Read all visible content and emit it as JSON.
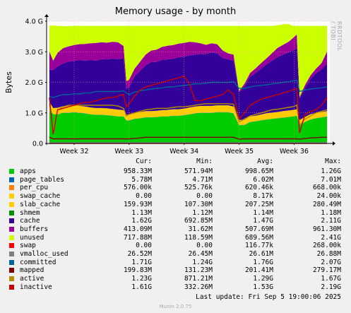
{
  "chart_data": {
    "type": "area",
    "title": "Memory usage - by month",
    "ylabel": "Bytes",
    "watermark": "RRDTOOL / TOBI OETIKER",
    "ylim": [
      0,
      4.0
    ],
    "yticks": [
      {
        "value": 0.0,
        "label": "0.0"
      },
      {
        "value": 1.0,
        "label": "1.0 G"
      },
      {
        "value": 2.0,
        "label": "2.0 G"
      },
      {
        "value": 3.0,
        "label": "3.0 G"
      },
      {
        "value": 4.0,
        "label": "4.0 G"
      }
    ],
    "xlim": [
      31.5,
      36.65
    ],
    "xticks": [
      {
        "value": 32,
        "label": "Week 32"
      },
      {
        "value": 33,
        "label": "Week 33"
      },
      {
        "value": 34,
        "label": "Week 34"
      },
      {
        "value": 35,
        "label": "Week 35"
      },
      {
        "value": 36,
        "label": "Week 36"
      }
    ],
    "x": [
      31.55,
      31.62,
      31.7,
      31.8,
      31.9,
      32.0,
      32.1,
      32.2,
      32.3,
      32.4,
      32.5,
      32.6,
      32.7,
      32.8,
      32.9,
      32.95,
      33.0,
      33.1,
      33.2,
      33.3,
      33.4,
      33.5,
      33.6,
      33.7,
      33.8,
      33.9,
      34.0,
      34.1,
      34.2,
      34.3,
      34.4,
      34.5,
      34.6,
      34.7,
      34.8,
      34.9,
      35.0,
      35.1,
      35.2,
      35.3,
      35.4,
      35.5,
      35.6,
      35.7,
      35.8,
      35.9,
      35.98,
      36.05,
      36.1,
      36.2,
      36.3,
      36.4,
      36.5,
      36.6
    ],
    "total_top": 3.85,
    "series": [
      {
        "name": "apps",
        "color": "#00cc00",
        "values": [
          1.15,
          0.95,
          0.95,
          1.0,
          1.0,
          1.02,
          1.0,
          0.98,
          0.95,
          0.93,
          0.93,
          0.92,
          0.9,
          0.88,
          0.88,
          0.75,
          0.75,
          0.8,
          0.82,
          0.85,
          0.85,
          0.86,
          0.88,
          0.88,
          0.9,
          0.9,
          0.92,
          0.95,
          0.98,
          1.0,
          1.0,
          1.0,
          1.02,
          1.02,
          1.02,
          0.98,
          0.6,
          0.6,
          0.7,
          0.72,
          0.75,
          0.78,
          0.8,
          0.82,
          0.84,
          0.86,
          0.88,
          0.9,
          0.6,
          0.7,
          0.78,
          0.82,
          0.85,
          0.88
        ]
      },
      {
        "name": "page_tables",
        "color": "#0066b3",
        "values": [
          0.006,
          0.006,
          0.006,
          0.006,
          0.006,
          0.006,
          0.006,
          0.006,
          0.006,
          0.006,
          0.006,
          0.006,
          0.006,
          0.006,
          0.006,
          0.006,
          0.006,
          0.006,
          0.006,
          0.006,
          0.006,
          0.006,
          0.006,
          0.006,
          0.006,
          0.006,
          0.006,
          0.006,
          0.006,
          0.006,
          0.006,
          0.006,
          0.006,
          0.006,
          0.006,
          0.006,
          0.006,
          0.006,
          0.006,
          0.006,
          0.006,
          0.006,
          0.006,
          0.006,
          0.006,
          0.006,
          0.006,
          0.006,
          0.006,
          0.006,
          0.006,
          0.006,
          0.006,
          0.006
        ]
      },
      {
        "name": "per_cpu",
        "color": "#ff8000",
        "values": [
          0.001,
          0.001,
          0.001,
          0.001,
          0.001,
          0.001,
          0.001,
          0.001,
          0.001,
          0.001,
          0.001,
          0.001,
          0.001,
          0.001,
          0.001,
          0.001,
          0.001,
          0.001,
          0.001,
          0.001,
          0.001,
          0.001,
          0.001,
          0.001,
          0.001,
          0.001,
          0.001,
          0.001,
          0.001,
          0.001,
          0.001,
          0.001,
          0.001,
          0.001,
          0.001,
          0.001,
          0.001,
          0.001,
          0.001,
          0.001,
          0.001,
          0.001,
          0.001,
          0.001,
          0.001,
          0.001,
          0.001,
          0.001,
          0.001,
          0.001,
          0.001,
          0.001,
          0.001,
          0.001
        ]
      },
      {
        "name": "swap_cache",
        "color": "#ffcc00",
        "values": [
          0.0,
          0.0,
          0.0,
          0.0,
          0.0,
          0.0,
          0.0,
          0.0,
          0.0,
          0.0,
          0.0,
          0.0,
          0.0,
          0.0,
          0.0,
          0.0,
          0.0,
          0.0,
          0.0,
          0.0,
          0.0,
          0.0,
          0.0,
          0.0,
          0.0,
          0.0,
          0.0,
          0.0,
          0.0,
          0.0,
          0.0,
          0.0,
          0.0,
          0.0,
          0.0,
          0.0,
          0.0,
          0.0,
          0.0,
          0.0,
          0.0,
          0.0,
          0.0,
          0.0,
          0.0,
          0.0,
          0.0,
          0.0,
          0.0,
          0.0,
          0.0,
          0.0,
          0.0,
          0.0
        ]
      },
      {
        "name": "slab_cache",
        "color": "#ffcc00",
        "values": [
          0.2,
          0.2,
          0.21,
          0.21,
          0.22,
          0.22,
          0.22,
          0.22,
          0.22,
          0.22,
          0.22,
          0.22,
          0.22,
          0.22,
          0.2,
          0.18,
          0.18,
          0.19,
          0.2,
          0.2,
          0.2,
          0.2,
          0.2,
          0.21,
          0.21,
          0.21,
          0.21,
          0.22,
          0.22,
          0.22,
          0.22,
          0.22,
          0.22,
          0.22,
          0.22,
          0.22,
          0.16,
          0.17,
          0.18,
          0.18,
          0.19,
          0.2,
          0.2,
          0.2,
          0.21,
          0.21,
          0.21,
          0.21,
          0.16,
          0.16,
          0.17,
          0.17,
          0.17,
          0.17
        ]
      },
      {
        "name": "shmem",
        "color": "#008f00",
        "values": [
          0.001,
          0.001,
          0.001,
          0.001,
          0.001,
          0.001,
          0.001,
          0.001,
          0.001,
          0.001,
          0.001,
          0.001,
          0.001,
          0.001,
          0.001,
          0.001,
          0.001,
          0.001,
          0.001,
          0.001,
          0.001,
          0.001,
          0.001,
          0.001,
          0.001,
          0.001,
          0.001,
          0.001,
          0.001,
          0.001,
          0.001,
          0.001,
          0.001,
          0.001,
          0.001,
          0.001,
          0.001,
          0.001,
          0.001,
          0.001,
          0.001,
          0.001,
          0.001,
          0.001,
          0.001,
          0.001,
          0.001,
          0.001,
          0.001,
          0.001,
          0.001,
          0.001,
          0.001,
          0.001
        ]
      },
      {
        "name": "cache",
        "color": "#330099",
        "values": [
          1.05,
          1.25,
          1.35,
          1.4,
          1.45,
          1.45,
          1.5,
          1.5,
          1.55,
          1.55,
          1.6,
          1.6,
          1.65,
          1.65,
          1.7,
          0.85,
          0.9,
          1.2,
          1.35,
          1.5,
          1.6,
          1.6,
          1.65,
          1.65,
          1.65,
          1.7,
          1.7,
          1.7,
          1.7,
          1.7,
          1.7,
          1.75,
          1.7,
          1.55,
          1.5,
          1.5,
          0.9,
          1.1,
          1.3,
          1.4,
          1.5,
          1.6,
          1.7,
          1.8,
          1.85,
          1.9,
          1.95,
          2.0,
          0.7,
          0.95,
          1.15,
          1.3,
          1.4,
          1.55
        ]
      },
      {
        "name": "buffers",
        "color": "#990099",
        "values": [
          0.6,
          0.3,
          0.45,
          0.5,
          0.5,
          0.52,
          0.52,
          0.55,
          0.55,
          0.58,
          0.55,
          0.55,
          0.55,
          0.55,
          0.4,
          0.25,
          0.25,
          0.25,
          0.3,
          0.35,
          0.38,
          0.4,
          0.42,
          0.45,
          0.45,
          0.45,
          0.45,
          0.45,
          0.4,
          0.35,
          0.3,
          0.3,
          0.3,
          0.25,
          0.2,
          0.2,
          0.05,
          0.08,
          0.12,
          0.15,
          0.18,
          0.2,
          0.25,
          0.3,
          0.32,
          0.35,
          0.4,
          0.45,
          0.05,
          0.1,
          0.12,
          0.15,
          0.2,
          0.4
        ]
      },
      {
        "name": "unused",
        "color": "#ccff00",
        "values": [
          0.85,
          1.15,
          0.88,
          0.72,
          0.66,
          0.63,
          0.6,
          0.59,
          0.57,
          0.56,
          0.54,
          0.55,
          0.52,
          0.54,
          0.66,
          1.81,
          1.76,
          1.4,
          1.17,
          0.94,
          0.81,
          0.78,
          0.69,
          0.65,
          0.63,
          0.58,
          0.56,
          0.52,
          0.54,
          0.57,
          0.62,
          0.57,
          0.6,
          0.8,
          0.9,
          0.94,
          2.13,
          1.89,
          1.54,
          1.39,
          1.22,
          1.06,
          0.89,
          0.74,
          0.67,
          0.58,
          0.4,
          0.28,
          2.33,
          1.93,
          1.62,
          1.4,
          1.22,
          0.84
        ]
      }
    ],
    "lines": [
      {
        "name": "swap",
        "color": "#ff0000",
        "values": [
          0.0,
          0.0,
          0.0,
          0.0,
          0.0,
          0.0,
          0.0,
          0.0,
          0.0,
          0.0,
          0.0,
          0.0,
          0.0,
          0.0,
          0.0,
          0.0,
          0.0,
          0.0,
          0.0,
          0.0,
          0.0,
          0.0,
          0.0,
          0.0,
          0.0,
          0.0,
          0.0,
          0.0,
          0.0,
          0.0,
          0.0,
          0.0,
          0.0,
          0.0,
          0.0,
          0.0,
          0.0,
          0.0,
          0.0,
          0.0,
          0.0,
          0.0,
          0.0,
          0.0,
          0.0,
          0.0,
          0.0,
          0.0,
          0.0,
          0.0,
          0.0,
          0.0,
          0.0,
          0.0
        ]
      },
      {
        "name": "vmalloc_used",
        "color": "#808080",
        "values": [
          0.026,
          0.026,
          0.026,
          0.026,
          0.026,
          0.026,
          0.026,
          0.026,
          0.026,
          0.026,
          0.026,
          0.026,
          0.026,
          0.026,
          0.026,
          0.026,
          0.026,
          0.026,
          0.026,
          0.026,
          0.026,
          0.026,
          0.026,
          0.026,
          0.026,
          0.026,
          0.026,
          0.026,
          0.026,
          0.026,
          0.026,
          0.026,
          0.026,
          0.026,
          0.026,
          0.026,
          0.026,
          0.026,
          0.026,
          0.026,
          0.026,
          0.026,
          0.026,
          0.026,
          0.026,
          0.026,
          0.026,
          0.026,
          0.026,
          0.026,
          0.026,
          0.026,
          0.026,
          0.026
        ]
      },
      {
        "name": "committed",
        "color": "#006699",
        "values": [
          1.55,
          1.5,
          1.55,
          1.6,
          1.6,
          1.62,
          1.62,
          1.65,
          1.65,
          1.7,
          1.7,
          1.7,
          1.7,
          1.7,
          1.72,
          1.65,
          1.6,
          1.68,
          1.72,
          1.75,
          1.78,
          1.8,
          1.82,
          1.85,
          1.85,
          1.88,
          1.9,
          1.92,
          1.95,
          1.95,
          1.97,
          2.0,
          2.0,
          2.0,
          2.0,
          2.02,
          1.8,
          1.8,
          1.85,
          1.88,
          1.9,
          1.92,
          1.95,
          1.97,
          2.0,
          2.02,
          2.05,
          2.07,
          1.7,
          1.75,
          1.78,
          1.8,
          1.82,
          1.85
        ]
      },
      {
        "name": "mapped",
        "color": "#800000",
        "values": [
          0.2,
          0.15,
          0.15,
          0.15,
          0.15,
          0.15,
          0.15,
          0.15,
          0.15,
          0.15,
          0.15,
          0.15,
          0.15,
          0.15,
          0.15,
          0.15,
          0.15,
          0.16,
          0.18,
          0.2,
          0.2,
          0.2,
          0.2,
          0.2,
          0.2,
          0.2,
          0.2,
          0.2,
          0.2,
          0.2,
          0.2,
          0.2,
          0.2,
          0.2,
          0.2,
          0.2,
          0.14,
          0.15,
          0.15,
          0.15,
          0.15,
          0.15,
          0.15,
          0.15,
          0.15,
          0.15,
          0.15,
          0.15,
          0.14,
          0.16,
          0.18,
          0.19,
          0.2,
          0.2
        ]
      },
      {
        "name": "active",
        "color": "#b38f00",
        "values": [
          1.3,
          0.4,
          1.1,
          1.2,
          1.25,
          1.25,
          1.25,
          1.25,
          1.25,
          1.25,
          1.25,
          1.25,
          1.25,
          1.22,
          1.15,
          0.9,
          0.95,
          1.0,
          1.05,
          1.1,
          1.12,
          1.15,
          1.15,
          1.15,
          1.18,
          1.2,
          1.2,
          1.22,
          1.25,
          1.28,
          1.3,
          1.3,
          1.3,
          1.3,
          1.3,
          1.28,
          0.7,
          0.8,
          0.9,
          0.95,
          1.0,
          1.05,
          1.1,
          1.12,
          1.15,
          1.18,
          1.2,
          1.25,
          0.6,
          0.8,
          0.9,
          1.0,
          1.05,
          1.1
        ]
      },
      {
        "name": "inactive",
        "color": "#cc0000",
        "values": [
          1.5,
          0.3,
          1.1,
          1.15,
          1.2,
          1.25,
          1.3,
          1.35,
          1.35,
          1.4,
          1.45,
          1.5,
          1.5,
          1.55,
          1.6,
          1.2,
          1.3,
          1.55,
          1.75,
          1.85,
          1.9,
          1.95,
          2.0,
          2.05,
          2.1,
          2.15,
          2.2,
          1.95,
          1.4,
          1.4,
          1.45,
          1.5,
          1.55,
          1.6,
          1.75,
          1.6,
          0.8,
          1.0,
          1.25,
          1.35,
          1.45,
          1.5,
          1.55,
          1.6,
          1.65,
          1.7,
          1.75,
          1.8,
          0.35,
          0.95,
          1.05,
          1.1,
          1.25,
          1.5
        ]
      }
    ]
  },
  "legend": {
    "headers": {
      "cur": "Cur:",
      "min": "Min:",
      "avg": "Avg:",
      "max": "Max:"
    },
    "rows": [
      {
        "name": "apps",
        "color": "#00cc00",
        "cur": "958.33M",
        "min": "571.94M",
        "avg": "998.65M",
        "max": "1.26G"
      },
      {
        "name": "page_tables",
        "color": "#0066b3",
        "cur": "5.78M",
        "min": "4.71M",
        "avg": "6.02M",
        "max": "7.01M"
      },
      {
        "name": "per_cpu",
        "color": "#ff8000",
        "cur": "576.00k",
        "min": "525.76k",
        "avg": "620.46k",
        "max": "668.00k"
      },
      {
        "name": "swap_cache",
        "color": "#ffcc00",
        "cur": "0.00",
        "min": "0.00",
        "avg": "8.17k",
        "max": "24.00k"
      },
      {
        "name": "slab_cache",
        "color": "#ffcc00",
        "cur": "159.93M",
        "min": "107.30M",
        "avg": "207.25M",
        "max": "280.49M"
      },
      {
        "name": "shmem",
        "color": "#008f00",
        "cur": "1.13M",
        "min": "1.12M",
        "avg": "1.14M",
        "max": "1.18M"
      },
      {
        "name": "cache",
        "color": "#330099",
        "cur": "1.62G",
        "min": "692.85M",
        "avg": "1.47G",
        "max": "2.11G"
      },
      {
        "name": "buffers",
        "color": "#990099",
        "cur": "413.09M",
        "min": "31.62M",
        "avg": "507.69M",
        "max": "961.30M"
      },
      {
        "name": "unused",
        "color": "#ccff00",
        "cur": "717.88M",
        "min": "118.59M",
        "avg": "689.56M",
        "max": "2.41G"
      },
      {
        "name": "swap",
        "color": "#ff0000",
        "cur": "0.00",
        "min": "0.00",
        "avg": "116.77k",
        "max": "268.00k"
      },
      {
        "name": "vmalloc_used",
        "color": "#808080",
        "cur": "26.52M",
        "min": "26.45M",
        "avg": "26.61M",
        "max": "26.88M"
      },
      {
        "name": "committed",
        "color": "#006699",
        "cur": "1.71G",
        "min": "1.24G",
        "avg": "1.76G",
        "max": "2.07G"
      },
      {
        "name": "mapped",
        "color": "#800000",
        "cur": "199.83M",
        "min": "131.23M",
        "avg": "201.41M",
        "max": "279.17M"
      },
      {
        "name": "active",
        "color": "#b38f00",
        "cur": "1.23G",
        "min": "871.21M",
        "avg": "1.29G",
        "max": "1.67G"
      },
      {
        "name": "inactive",
        "color": "#cc0000",
        "cur": "1.61G",
        "min": "332.26M",
        "avg": "1.53G",
        "max": "2.19G"
      }
    ]
  },
  "footer": {
    "last_update": "Last update: Fri Sep  5 19:00:06 2025",
    "version": "Munin 2.0.75"
  }
}
